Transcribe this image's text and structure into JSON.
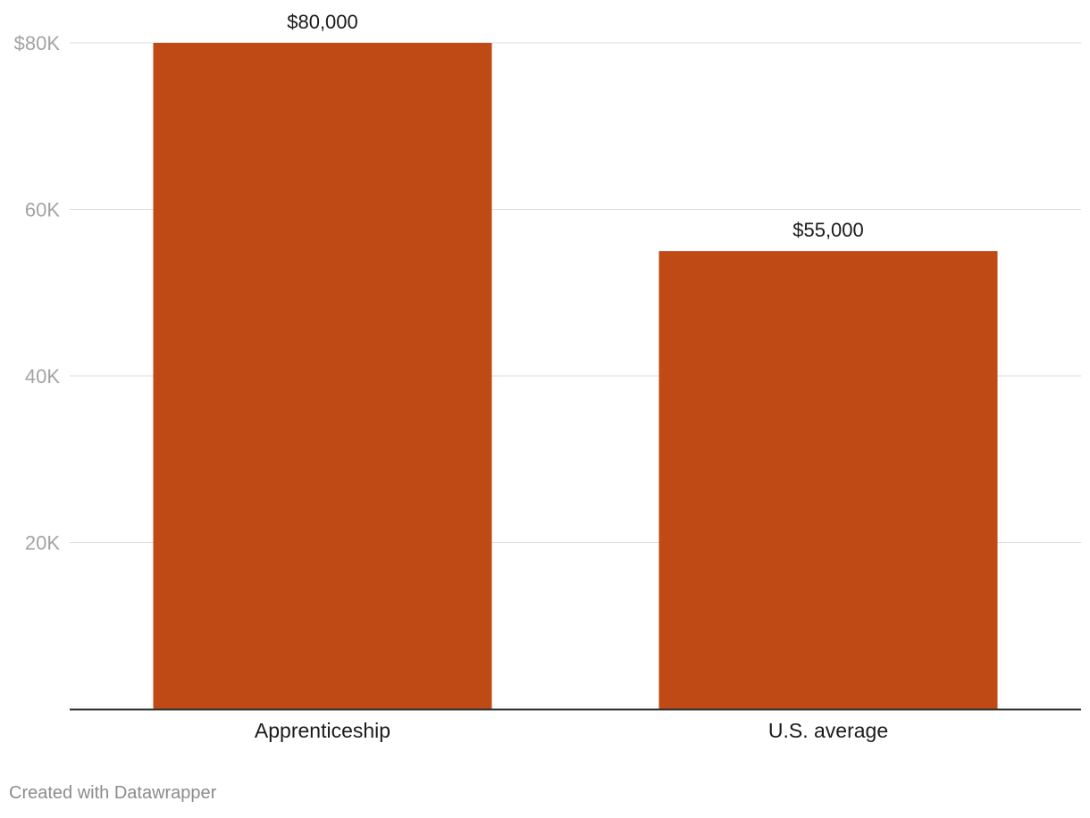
{
  "chart_data": {
    "type": "bar",
    "categories": [
      "Apprenticeship",
      "U.S. average"
    ],
    "values": [
      80000,
      55000
    ],
    "data_labels": [
      "$80,000",
      "$55,000"
    ],
    "bar_color": "#c04a15",
    "title": "",
    "xlabel": "",
    "ylabel": "",
    "ylim": [
      0,
      80000
    ],
    "y_ticks": [
      {
        "value": 80000,
        "label": "$80K"
      },
      {
        "value": 60000,
        "label": "60K"
      },
      {
        "value": 40000,
        "label": "40K"
      },
      {
        "value": 20000,
        "label": "20K"
      }
    ],
    "grid": true
  },
  "footer": {
    "credit": "Created with Datawrapper"
  }
}
